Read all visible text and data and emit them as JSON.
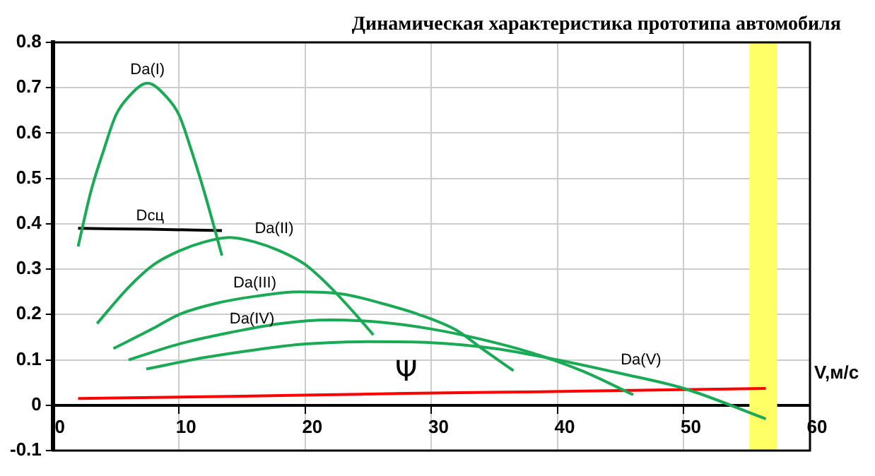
{
  "chart_data": {
    "type": "line",
    "title": "Динамическая характеристика прототипа автомобиля",
    "xlabel": "V,м/с",
    "xlim": [
      0,
      60
    ],
    "xticks": [
      0,
      10,
      20,
      30,
      40,
      50,
      60
    ],
    "ylim": [
      -0.1,
      0.8
    ],
    "yticks": [
      -0.1,
      0,
      0.1,
      0.2,
      0.3,
      0.4,
      0.5,
      0.6,
      0.7,
      0.8
    ],
    "grid": true,
    "legend": false,
    "marker": "none",
    "line_style": "solid",
    "bands": [
      {
        "axis": "x",
        "from": 55.2,
        "to": 57.4,
        "color": "#ffff66"
      }
    ],
    "series": [
      {
        "name": "Da(I)",
        "color": "#1aaa55",
        "x": [
          2,
          3,
          4,
          5,
          6,
          7.5,
          9,
          10,
          11,
          12,
          13.4
        ],
        "values": [
          0.35,
          0.47,
          0.56,
          0.64,
          0.68,
          0.71,
          0.68,
          0.64,
          0.56,
          0.47,
          0.33
        ]
      },
      {
        "name": "Dсц",
        "color": "#000000",
        "x": [
          2,
          7.7,
          13.4
        ],
        "values": [
          0.39,
          0.388,
          0.385
        ]
      },
      {
        "name": "Da(II)",
        "color": "#1aaa55",
        "x": [
          3.5,
          6,
          8,
          10,
          12,
          14,
          16,
          18,
          20,
          22,
          24,
          25.4
        ],
        "values": [
          0.18,
          0.26,
          0.31,
          0.34,
          0.36,
          0.37,
          0.36,
          0.34,
          0.31,
          0.26,
          0.2,
          0.155
        ]
      },
      {
        "name": "Da(III)",
        "color": "#1aaa55",
        "x": [
          4.8,
          8,
          10,
          13,
          16,
          19.5,
          23,
          26,
          29,
          32,
          34,
          36.5
        ],
        "values": [
          0.125,
          0.17,
          0.2,
          0.225,
          0.24,
          0.25,
          0.245,
          0.225,
          0.2,
          0.165,
          0.125,
          0.076
        ]
      },
      {
        "name": "Da(IV)",
        "color": "#1aaa55",
        "x": [
          6,
          10,
          14,
          18,
          22,
          26,
          30,
          34,
          38,
          42,
          46
        ],
        "values": [
          0.1,
          0.135,
          0.16,
          0.18,
          0.188,
          0.183,
          0.168,
          0.145,
          0.115,
          0.075,
          0.023
        ]
      },
      {
        "name": "Da(V)",
        "color": "#1aaa55",
        "x": [
          7.4,
          12,
          16,
          20,
          25,
          30,
          35,
          40,
          45,
          50,
          56.5
        ],
        "values": [
          0.08,
          0.105,
          0.122,
          0.135,
          0.14,
          0.138,
          0.125,
          0.1,
          0.07,
          0.037,
          -0.03
        ]
      },
      {
        "name": "Ψ",
        "color": "#ff0000",
        "x": [
          2,
          15,
          28,
          42,
          56.5
        ],
        "values": [
          0.015,
          0.02,
          0.026,
          0.031,
          0.037
        ]
      }
    ]
  }
}
